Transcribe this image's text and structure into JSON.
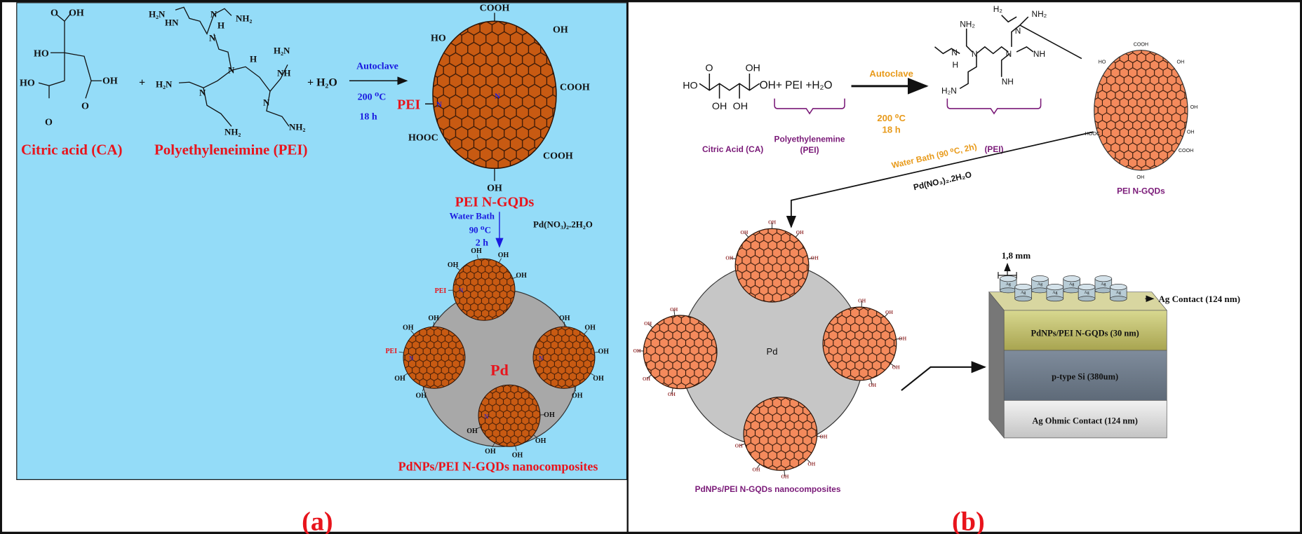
{
  "colors": {
    "panel_a_background": "#94dcf8",
    "gqd_a_fill": "#c85a12",
    "gqd_b_fill": "#f48a5c",
    "pd_gray": "#a8a8a8",
    "label_red": "#e8141c",
    "condition_blue": "#1a1ae0",
    "label_purple": "#7a1a78",
    "condition_orange": "#e89a1a"
  },
  "panel_a": {
    "panel_label": "(a)",
    "citric_acid": {
      "label": "Citric acid (CA)",
      "groups": [
        "O",
        "OH",
        "HO",
        "HO",
        "OH",
        "O",
        "O"
      ]
    },
    "pei": {
      "label": "Polyethyleneimine (PEI)",
      "groups": [
        "H₂N",
        "HN",
        "N",
        "H",
        "NH₂",
        "N",
        "N",
        "H",
        "H₂N",
        "NH",
        "H₂N",
        "N",
        "N",
        "NH₂",
        "NH₂"
      ]
    },
    "plus": "+",
    "water": "+ H₂O",
    "step1": {
      "reagent": "Autoclave",
      "temperature": "200 ⁰C",
      "time": "18 h"
    },
    "gqd": {
      "label": "PEI N-GQDs",
      "groups": {
        "top": "COOH",
        "top_left": "HO",
        "top_right": "OH",
        "left": "PEI",
        "left_n": "N",
        "center_n": "N",
        "right": "COOH",
        "bottom_left": "HOOC",
        "bottom_right": "COOH",
        "bottom": "OH"
      }
    },
    "step2": {
      "reagent": "Water Bath",
      "temperature": "90 ⁰C",
      "time": "2 h",
      "precursor": "Pd(NO₃)₂.2H₂O"
    },
    "composite": {
      "center": "Pd",
      "label": "PdNPs/PEI N-GQDs nanocomposites"
    },
    "small_gqd_labels": {
      "oh": "OH",
      "pei": "PEI",
      "n": "N"
    }
  },
  "panel_b": {
    "panel_label": "(b)",
    "citric_acid": {
      "label": "Citric Acid (CA)",
      "groups": [
        "O",
        "OH",
        "HO",
        "OH",
        "OH",
        "OH"
      ]
    },
    "reaction_plus": "OH+ PEI +H₂O",
    "pei_brace_label": "Polyethylenemine",
    "pei_brace_sub": "(PEI)",
    "step1": {
      "reagent": "Autoclave",
      "temperature": "200 ⁰C",
      "time": "18 h"
    },
    "pei_structure": {
      "label": "(PEI)",
      "groups": [
        "NH₂",
        "H₂",
        "NH₂",
        "N",
        "N",
        "N",
        "N",
        "NH",
        "H",
        "NH",
        "H₂N"
      ]
    },
    "gqd": {
      "label": "PEI N-GQDs",
      "groups": [
        "COOH",
        "HO",
        "OH",
        "OH",
        "OH",
        "HOOC",
        "COOH",
        "OH"
      ]
    },
    "step2": {
      "condition": "Water Bath (90 ⁰C, 2h)",
      "precursor": "Pd(NO₃)₂.2H₂O"
    },
    "composite": {
      "center": "Pd",
      "label": "PdNPs/PEI N-GQDs nanocomposites"
    },
    "device": {
      "electrode_size": "1,8 mm",
      "electrode_label": "Ag",
      "top_contact": "Ag Contact (124 nm)",
      "layer_film": "PdNPs/PEI N-GQDs (30 nm)",
      "layer_substrate": "p-type Si (380um)",
      "layer_bottom": "Ag Ohmic Contact (124 nm)"
    }
  }
}
